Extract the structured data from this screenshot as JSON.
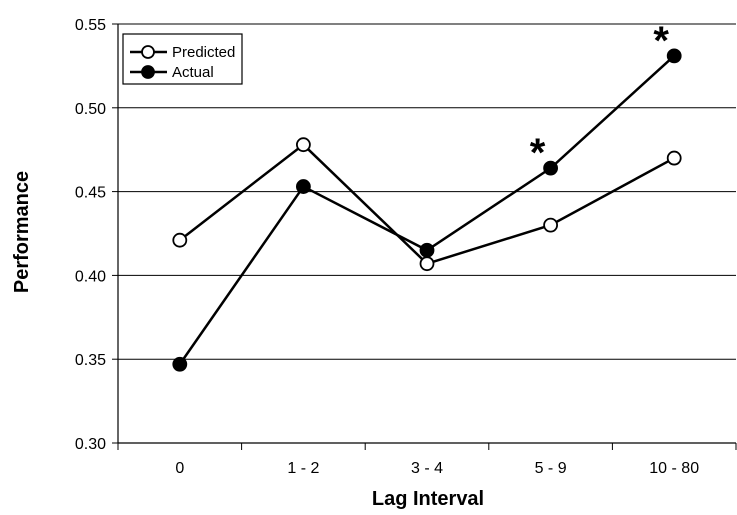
{
  "chart_data": {
    "type": "line",
    "xlabel": "Lag Interval",
    "ylabel": "Performance",
    "categories": [
      "0",
      "1 - 2",
      "3 - 4",
      "5 - 9",
      "10 - 80"
    ],
    "ylim": [
      0.3,
      0.55
    ],
    "yticks": [
      "0.30",
      "0.35",
      "0.40",
      "0.45",
      "0.50",
      "0.55"
    ],
    "grid": true,
    "legend_position": "top-left",
    "series": [
      {
        "name": "Predicted",
        "marker": "open-circle",
        "values": [
          0.421,
          0.478,
          0.407,
          0.43,
          0.47
        ]
      },
      {
        "name": "Actual",
        "marker": "filled-circle",
        "values": [
          0.347,
          0.453,
          0.415,
          0.464,
          0.531
        ]
      }
    ],
    "annotations": [
      {
        "text": "*",
        "category": "5 - 9",
        "series": "Actual"
      },
      {
        "text": "*",
        "category": "10 - 80",
        "series": "Actual"
      }
    ]
  }
}
